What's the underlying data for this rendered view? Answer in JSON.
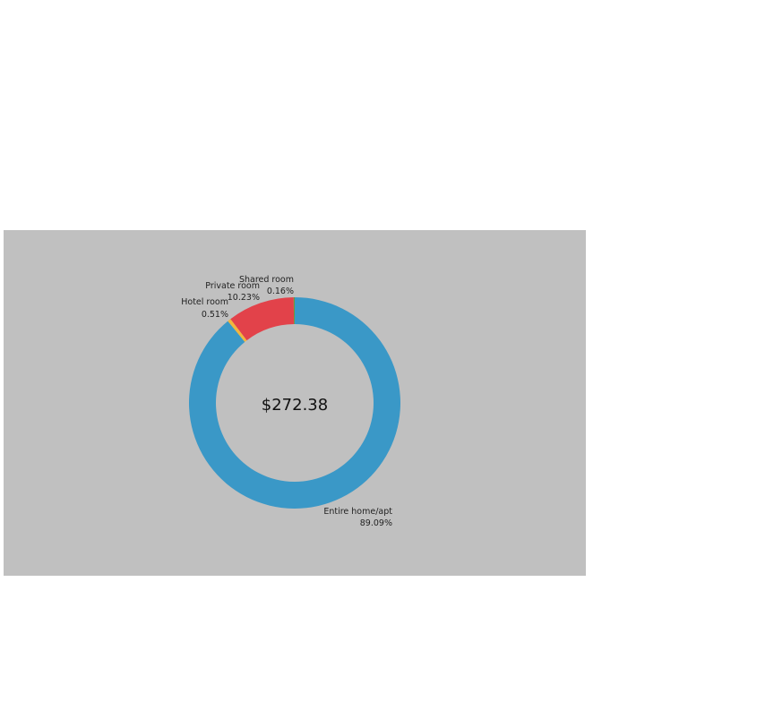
{
  "colors": {
    "panel_bg": "#c0c0c0",
    "entire": "#3a98c7",
    "private": "#e2424a",
    "hotel": "#f2b63c",
    "shared": "#6a9a3a"
  },
  "chart_data": {
    "type": "pie",
    "variant": "donut",
    "center_label": "$272.38",
    "slices": [
      {
        "name": "Entire home/apt",
        "pct_label": "89.09%",
        "value": 89.09,
        "color": "#3a98c7"
      },
      {
        "name": "Hotel room",
        "pct_label": "0.51%",
        "value": 0.51,
        "color": "#f2b63c"
      },
      {
        "name": "Private room",
        "pct_label": "10.23%",
        "value": 10.23,
        "color": "#e2424a"
      },
      {
        "name": "Shared room",
        "pct_label": "0.16%",
        "value": 0.16,
        "color": "#6a9a3a"
      }
    ]
  }
}
